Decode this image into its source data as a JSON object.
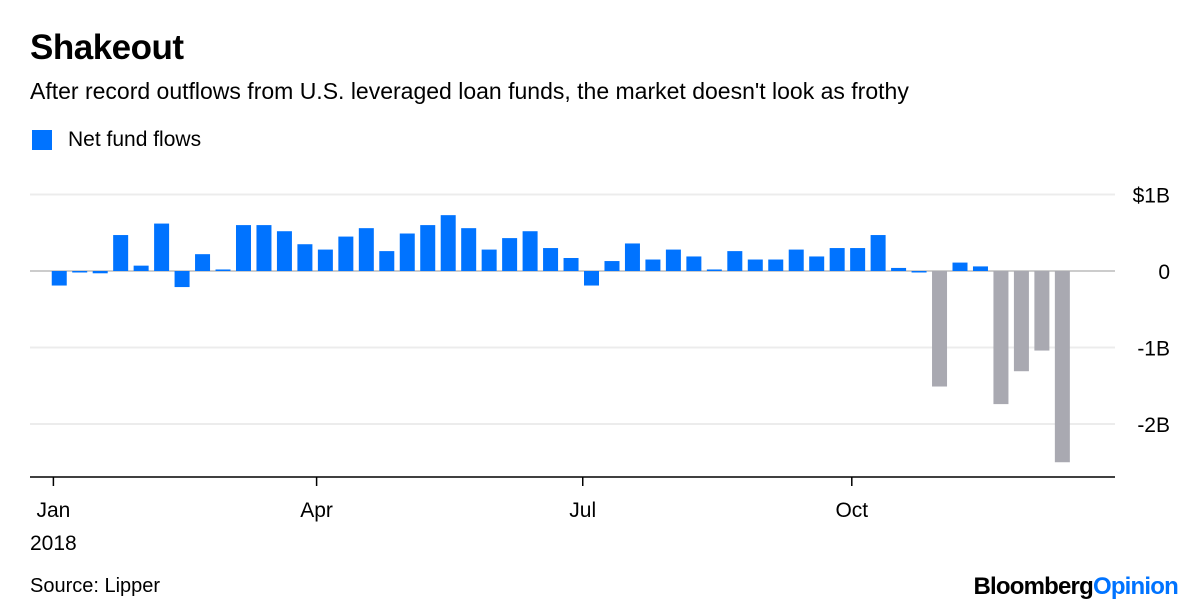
{
  "title": "Shakeout",
  "subtitle": "After record outflows from U.S. leveraged loan funds, the market doesn't look as frothy",
  "source": "Source: Lipper",
  "logo": {
    "part1": "Bloomberg",
    "part2": "Opinion"
  },
  "colors": {
    "primary": "#0073ff",
    "highlight": "#a9a9b1",
    "logo_accent": "#0073ff"
  },
  "chart_data": {
    "type": "bar",
    "title": "Shakeout",
    "legend": [
      {
        "name": "Net fund flows",
        "color": "#0073ff"
      }
    ],
    "legend_placement": "top-left",
    "xlabel": "",
    "ylabel": "",
    "ylim": [
      -2.6,
      1.1
    ],
    "y_ticks": [
      {
        "value": 1,
        "label": "$1B"
      },
      {
        "value": 0,
        "label": "0"
      },
      {
        "value": -1,
        "label": "-1B"
      },
      {
        "value": -2,
        "label": "-2B"
      }
    ],
    "x_ticks": [
      {
        "date": "2018-01-01",
        "label": "Jan"
      },
      {
        "date": "2018-04-01",
        "label": "Apr"
      },
      {
        "date": "2018-07-01",
        "label": "Jul"
      },
      {
        "date": "2018-10-01",
        "label": "Oct"
      }
    ],
    "x_year_label": "2018",
    "xlim": [
      "2017-12-24",
      "2018-12-30"
    ],
    "grid": true,
    "x_start": "2018-01-03",
    "x_step_days": 7,
    "values": [
      -0.19,
      -0.01,
      -0.03,
      0.47,
      0.07,
      0.62,
      -0.21,
      0.22,
      0.02,
      0.6,
      0.6,
      0.52,
      0.35,
      0.28,
      0.45,
      0.56,
      0.26,
      0.49,
      0.6,
      0.73,
      0.56,
      0.28,
      0.43,
      0.52,
      0.3,
      0.17,
      -0.19,
      0.13,
      0.36,
      0.15,
      0.28,
      0.19,
      0.02,
      0.26,
      0.15,
      0.15,
      0.28,
      0.19,
      0.3,
      0.3,
      0.47,
      0.04,
      -0.01,
      -1.51,
      0.11,
      0.06,
      -1.74,
      -1.31,
      -1.04,
      -2.5
    ],
    "highlighted_indices": [
      43,
      46,
      47,
      48,
      49
    ]
  }
}
